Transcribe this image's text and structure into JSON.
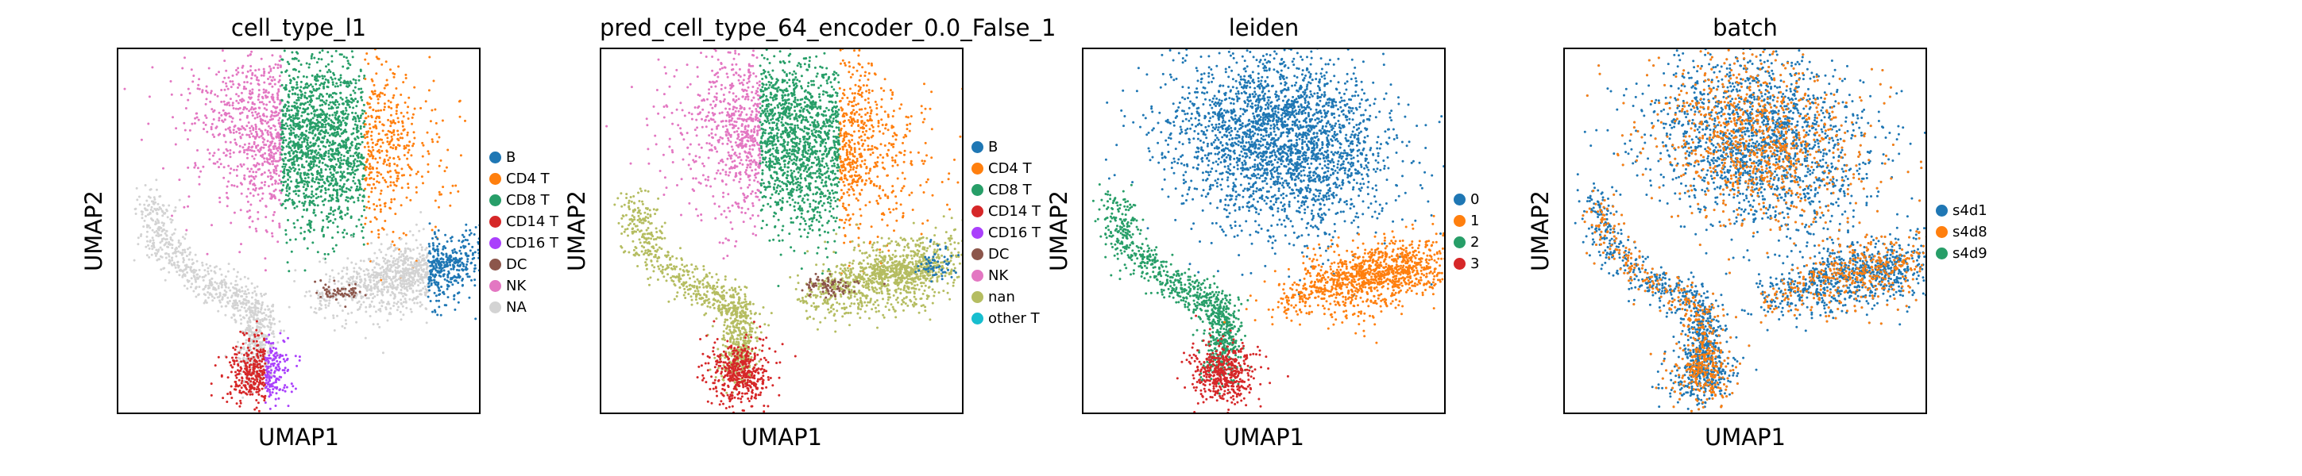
{
  "chart_data": [
    {
      "type": "scatter",
      "title": "cell_type_l1",
      "xlabel": "UMAP1",
      "ylabel": "UMAP2",
      "grid": false,
      "legend_placement": "right",
      "legend": [
        {
          "label": "B",
          "color": "#1f77b4"
        },
        {
          "label": "CD4 T",
          "color": "#ff7f0e"
        },
        {
          "label": "CD8 T",
          "color": "#279e68"
        },
        {
          "label": "CD14 T",
          "color": "#d62728"
        },
        {
          "label": "CD16 T",
          "color": "#aa40fc"
        },
        {
          "label": "DC",
          "color": "#8c564b"
        },
        {
          "label": "NK",
          "color": "#e377c2"
        },
        {
          "label": "NA",
          "color": "#d3d3d3"
        }
      ]
    },
    {
      "type": "scatter",
      "title": "pred_cell_type_64_encoder_0.0_False_1",
      "xlabel": "UMAP1",
      "ylabel": "UMAP2",
      "grid": false,
      "legend_placement": "right",
      "legend": [
        {
          "label": "B",
          "color": "#1f77b4"
        },
        {
          "label": "CD4 T",
          "color": "#ff7f0e"
        },
        {
          "label": "CD8 T",
          "color": "#279e68"
        },
        {
          "label": "CD14 T",
          "color": "#d62728"
        },
        {
          "label": "CD16 T",
          "color": "#aa40fc"
        },
        {
          "label": "DC",
          "color": "#8c564b"
        },
        {
          "label": "NK",
          "color": "#e377c2"
        },
        {
          "label": "nan",
          "color": "#b5bd61"
        },
        {
          "label": "other T",
          "color": "#17becf"
        }
      ]
    },
    {
      "type": "scatter",
      "title": "leiden",
      "xlabel": "UMAP1",
      "ylabel": "UMAP2",
      "grid": false,
      "legend_placement": "right",
      "legend": [
        {
          "label": "0",
          "color": "#1f77b4"
        },
        {
          "label": "1",
          "color": "#ff7f0e"
        },
        {
          "label": "2",
          "color": "#279e68"
        },
        {
          "label": "3",
          "color": "#d62728"
        }
      ]
    },
    {
      "type": "scatter",
      "title": "batch",
      "xlabel": "UMAP1",
      "ylabel": "UMAP2",
      "grid": false,
      "legend_placement": "right",
      "legend": [
        {
          "label": "s4d1",
          "color": "#1f77b4"
        },
        {
          "label": "s4d8",
          "color": "#ff7f0e"
        },
        {
          "label": "s4d9",
          "color": "#279e68"
        }
      ]
    }
  ]
}
